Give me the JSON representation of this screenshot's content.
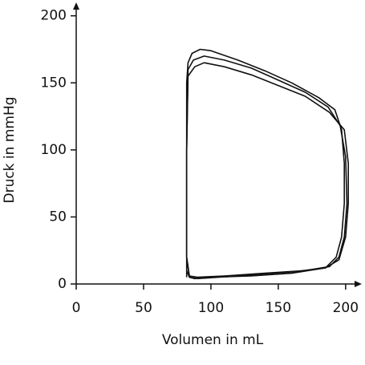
{
  "chart_data": {
    "type": "line",
    "x_label": "Volumen in mL",
    "y_label": "Druck in mmHg",
    "xlim": [
      0,
      212
    ],
    "ylim": [
      0,
      210
    ],
    "xticks": [
      0,
      50,
      100,
      150,
      200
    ],
    "yticks": [
      0,
      50,
      100,
      150,
      200
    ],
    "series": [
      {
        "color": "#111111",
        "x": [
          82,
          82,
          82,
          82,
          83,
          86,
          92,
          100,
          120,
          140,
          160,
          180,
          192,
          197,
          199,
          199,
          197,
          193,
          185,
          160,
          130,
          100,
          88,
          84,
          82,
          82
        ],
        "values": [
          5,
          40,
          100,
          150,
          165,
          172,
          175,
          174,
          167,
          159,
          150,
          139,
          130,
          115,
          90,
          60,
          35,
          20,
          12,
          8,
          6,
          5,
          4,
          5,
          10,
          20
        ]
      },
      {
        "color": "#111111",
        "x": [
          82,
          82,
          83,
          87,
          95,
          110,
          130,
          150,
          170,
          187,
          196,
          200,
          201,
          199,
          195,
          188,
          170,
          140,
          110,
          90,
          84,
          82
        ],
        "values": [
          20,
          100,
          160,
          167,
          170,
          167,
          161,
          152,
          143,
          132,
          118,
          95,
          60,
          35,
          20,
          13,
          10,
          8,
          6,
          5,
          6,
          20
        ]
      },
      {
        "color": "#111111",
        "x": [
          82,
          82,
          83,
          88,
          95,
          110,
          130,
          150,
          170,
          188,
          199,
          202,
          202,
          200,
          195,
          185,
          160,
          120,
          90,
          84,
          82
        ],
        "values": [
          20,
          100,
          155,
          162,
          165,
          162,
          156,
          148,
          140,
          128,
          115,
          90,
          60,
          35,
          18,
          12,
          9,
          6,
          4,
          5,
          20
        ]
      }
    ]
  }
}
